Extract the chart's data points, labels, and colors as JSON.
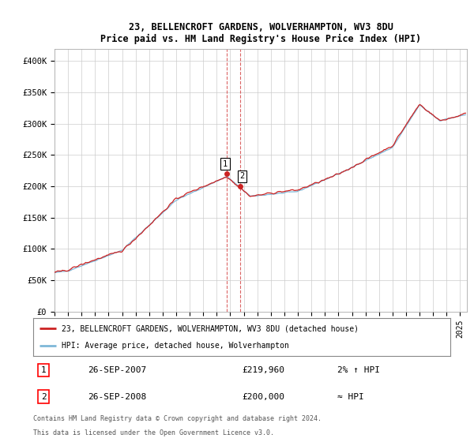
{
  "title1": "23, BELLENCROFT GARDENS, WOLVERHAMPTON, WV3 8DU",
  "title2": "Price paid vs. HM Land Registry's House Price Index (HPI)",
  "ylabel_ticks": [
    "£0",
    "£50K",
    "£100K",
    "£150K",
    "£200K",
    "£250K",
    "£300K",
    "£350K",
    "£400K"
  ],
  "ytick_values": [
    0,
    50000,
    100000,
    150000,
    200000,
    250000,
    300000,
    350000,
    400000
  ],
  "ylim": [
    0,
    420000
  ],
  "xlim_start": 1995.0,
  "xlim_end": 2025.5,
  "hpi_color": "#7fb8d8",
  "price_color": "#cc2222",
  "marker1_x": 2007.73,
  "marker1_y": 219960,
  "marker2_x": 2008.73,
  "marker2_y": 200000,
  "legend_line1": "23, BELLENCROFT GARDENS, WOLVERHAMPTON, WV3 8DU (detached house)",
  "legend_line2": "HPI: Average price, detached house, Wolverhampton",
  "table_row1_num": "1",
  "table_row1_date": "26-SEP-2007",
  "table_row1_price": "£219,960",
  "table_row1_hpi": "2% ↑ HPI",
  "table_row2_num": "2",
  "table_row2_date": "26-SEP-2008",
  "table_row2_price": "£200,000",
  "table_row2_hpi": "≈ HPI",
  "footnote1": "Contains HM Land Registry data © Crown copyright and database right 2024.",
  "footnote2": "This data is licensed under the Open Government Licence v3.0.",
  "bg_color": "#ffffff",
  "grid_color": "#cccccc",
  "vline_color": "#cc2222"
}
